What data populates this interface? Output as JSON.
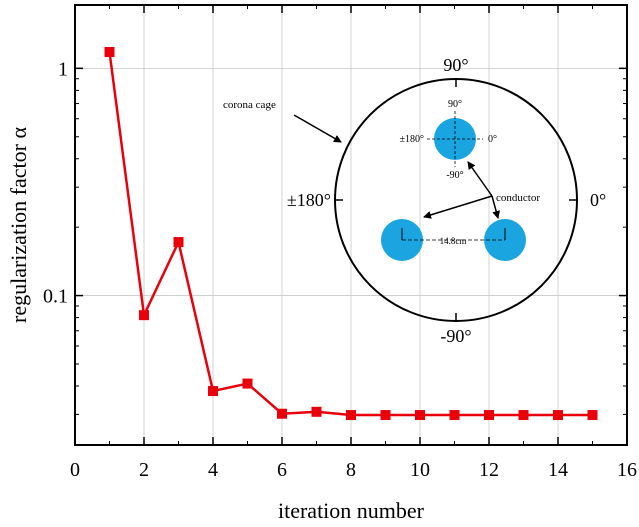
{
  "chart_data": {
    "type": "line",
    "title": "",
    "xlabel": "iteration number",
    "ylabel": "regularization factor α",
    "xlim": [
      0,
      16
    ],
    "ylim": [
      0.022,
      1.9
    ],
    "yscale": "log",
    "grid": true,
    "x_ticks": [
      0,
      2,
      4,
      6,
      8,
      10,
      12,
      14,
      16
    ],
    "y_ticks": [
      {
        "value": 1,
        "label": "1"
      },
      {
        "value": 0.1,
        "label": "0.1"
      }
    ],
    "series": [
      {
        "color": "#e8000b",
        "marker": "square",
        "x": [
          1,
          2,
          3,
          4,
          5,
          6,
          7,
          8,
          9,
          10,
          11,
          12,
          13,
          14,
          15
        ],
        "y": [
          1.18,
          0.082,
          0.172,
          0.038,
          0.041,
          0.0302,
          0.0308,
          0.0298,
          0.0298,
          0.0298,
          0.0298,
          0.0298,
          0.0298,
          0.0298,
          0.0298
        ]
      }
    ],
    "inset": {
      "labels": {
        "top": "90°",
        "bottom": "-90°",
        "left": "±180°",
        "right": "0°",
        "cage": "corona cage",
        "conductor": "conductor",
        "spacing": "14.8cm",
        "small_top": "90°",
        "small_bottom": "-90°",
        "small_left": "±180°",
        "small_right": "0°"
      },
      "conductor_color": "#1aa5e0"
    }
  }
}
